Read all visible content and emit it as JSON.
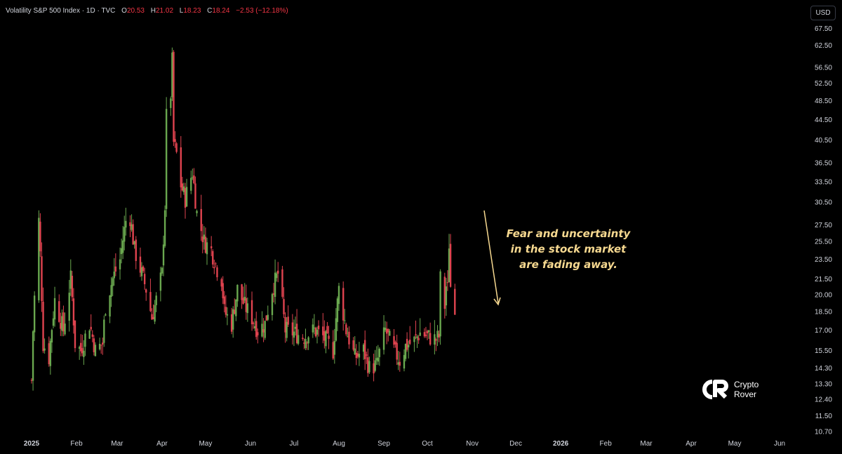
{
  "header": {
    "symbol": "Volatility S&P 500 Index · 1D · TVC",
    "open_label": "O",
    "open": "20.53",
    "high_label": "H",
    "high": "21.02",
    "low_label": "L",
    "low": "18.23",
    "close_label": "C",
    "close": "18.24",
    "change": "−2.53 (−12.18%)"
  },
  "currency_button": "USD",
  "annotation": {
    "lines": [
      "Fear and uncertainty",
      "in the stock market",
      "are fading away."
    ]
  },
  "logo": {
    "line1": "Crypto",
    "line2": "Rover"
  },
  "colors": {
    "up": "#6aa84f",
    "down": "#e0434f",
    "annotation": "#f7d990",
    "background": "#000000"
  },
  "chart_data": {
    "type": "candlestick",
    "title": "",
    "series_name": "",
    "y_axis": {
      "scale": "log",
      "range": [
        10.7,
        68
      ],
      "ticks": [
        67.5,
        62.5,
        56.5,
        52.5,
        48.5,
        44.5,
        40.5,
        36.5,
        33.5,
        30.5,
        27.5,
        25.5,
        23.5,
        21.5,
        20.0,
        18.5,
        17.0,
        15.5,
        14.3,
        13.3,
        12.4,
        11.5,
        10.7
      ],
      "tick_labels": [
        "67.50",
        "62.50",
        "56.50",
        "52.50",
        "48.50",
        "44.50",
        "40.50",
        "36.50",
        "33.50",
        "30.50",
        "27.50",
        "25.50",
        "23.50",
        "21.50",
        "20.00",
        "18.50",
        "17.00",
        "15.50",
        "14.30",
        "13.30",
        "12.40",
        "11.50",
        "10.70"
      ]
    },
    "x_axis": {
      "range": [
        "2025-01-01",
        "2026-06-15"
      ],
      "labels": [
        {
          "date": "2025-01-01",
          "label": "2025",
          "bold": true
        },
        {
          "date": "2025-02-01",
          "label": "Feb"
        },
        {
          "date": "2025-03-01",
          "label": "Mar"
        },
        {
          "date": "2025-04-01",
          "label": "Apr"
        },
        {
          "date": "2025-05-01",
          "label": "May"
        },
        {
          "date": "2025-06-01",
          "label": "Jun"
        },
        {
          "date": "2025-07-01",
          "label": "Jul"
        },
        {
          "date": "2025-08-01",
          "label": "Aug"
        },
        {
          "date": "2025-09-01",
          "label": "Sep"
        },
        {
          "date": "2025-10-01",
          "label": "Oct"
        },
        {
          "date": "2025-11-01",
          "label": "Nov"
        },
        {
          "date": "2025-12-01",
          "label": "Dec"
        },
        {
          "date": "2026-01-01",
          "label": "2026",
          "bold": true
        },
        {
          "date": "2026-02-01",
          "label": "Feb"
        },
        {
          "date": "2026-03-01",
          "label": "Mar"
        },
        {
          "date": "2026-04-01",
          "label": "Apr"
        },
        {
          "date": "2026-05-01",
          "label": "May"
        },
        {
          "date": "2026-06-01",
          "label": "Jun"
        }
      ]
    },
    "grid": false,
    "close_path": [
      [
        "2025-01-01",
        13.5
      ],
      [
        "2025-01-02",
        17.0
      ],
      [
        "2025-01-06",
        28.0
      ],
      [
        "2025-01-09",
        16.0
      ],
      [
        "2025-01-13",
        15.0
      ],
      [
        "2025-01-17",
        19.5
      ],
      [
        "2025-01-23",
        17.0
      ],
      [
        "2025-01-28",
        21.5
      ],
      [
        "2025-01-31",
        16.0
      ],
      [
        "2025-02-04",
        15.5
      ],
      [
        "2025-02-10",
        17.5
      ],
      [
        "2025-02-14",
        15.5
      ],
      [
        "2025-02-19",
        16.0
      ],
      [
        "2025-02-21",
        19.0
      ],
      [
        "2025-02-26",
        21.5
      ],
      [
        "2025-03-03",
        23.5
      ],
      [
        "2025-03-07",
        28.0
      ],
      [
        "2025-03-10",
        28.5
      ],
      [
        "2025-03-13",
        24.5
      ],
      [
        "2025-03-17",
        22.5
      ],
      [
        "2025-03-21",
        20.5
      ],
      [
        "2025-03-25",
        18.0
      ],
      [
        "2025-03-28",
        19.5
      ],
      [
        "2025-04-01",
        22.0
      ],
      [
        "2025-04-03",
        30.0
      ],
      [
        "2025-04-04",
        45.0
      ],
      [
        "2025-04-07",
        50.0
      ],
      [
        "2025-04-08",
        58.0
      ],
      [
        "2025-04-09",
        40.0
      ],
      [
        "2025-04-11",
        38.0
      ],
      [
        "2025-04-14",
        33.0
      ],
      [
        "2025-04-17",
        31.0
      ],
      [
        "2025-04-22",
        35.0
      ],
      [
        "2025-04-25",
        29.0
      ],
      [
        "2025-04-30",
        25.5
      ],
      [
        "2025-05-05",
        24.5
      ],
      [
        "2025-05-09",
        22.5
      ],
      [
        "2025-05-12",
        21.5
      ],
      [
        "2025-05-14",
        18.5
      ],
      [
        "2025-05-19",
        17.5
      ],
      [
        "2025-05-23",
        20.5
      ],
      [
        "2025-05-28",
        19.0
      ],
      [
        "2025-06-02",
        18.0
      ],
      [
        "2025-06-06",
        17.0
      ],
      [
        "2025-06-11",
        17.5
      ],
      [
        "2025-06-16",
        20.5
      ],
      [
        "2025-06-20",
        22.0
      ],
      [
        "2025-06-25",
        17.0
      ],
      [
        "2025-07-01",
        16.8
      ],
      [
        "2025-07-08",
        16.5
      ],
      [
        "2025-07-15",
        17.0
      ],
      [
        "2025-07-21",
        16.5
      ],
      [
        "2025-07-28",
        15.5
      ],
      [
        "2025-08-01",
        20.5
      ],
      [
        "2025-08-06",
        17.0
      ],
      [
        "2025-08-12",
        15.0
      ],
      [
        "2025-08-18",
        15.5
      ],
      [
        "2025-08-22",
        14.3
      ],
      [
        "2025-08-27",
        14.5
      ],
      [
        "2025-09-02",
        17.0
      ],
      [
        "2025-09-08",
        15.5
      ],
      [
        "2025-09-12",
        14.8
      ],
      [
        "2025-09-16",
        15.8
      ],
      [
        "2025-09-22",
        16.2
      ],
      [
        "2025-09-26",
        16.8
      ],
      [
        "2025-10-02",
        16.5
      ],
      [
        "2025-10-07",
        16.3
      ],
      [
        "2025-10-09",
        16.5
      ],
      [
        "2025-10-10",
        21.5
      ],
      [
        "2025-10-13",
        19.0
      ],
      [
        "2025-10-14",
        20.8
      ],
      [
        "2025-10-15",
        20.5
      ],
      [
        "2025-10-16",
        25.3
      ],
      [
        "2025-10-17",
        20.8
      ],
      [
        "2025-10-20",
        18.24
      ]
    ]
  }
}
